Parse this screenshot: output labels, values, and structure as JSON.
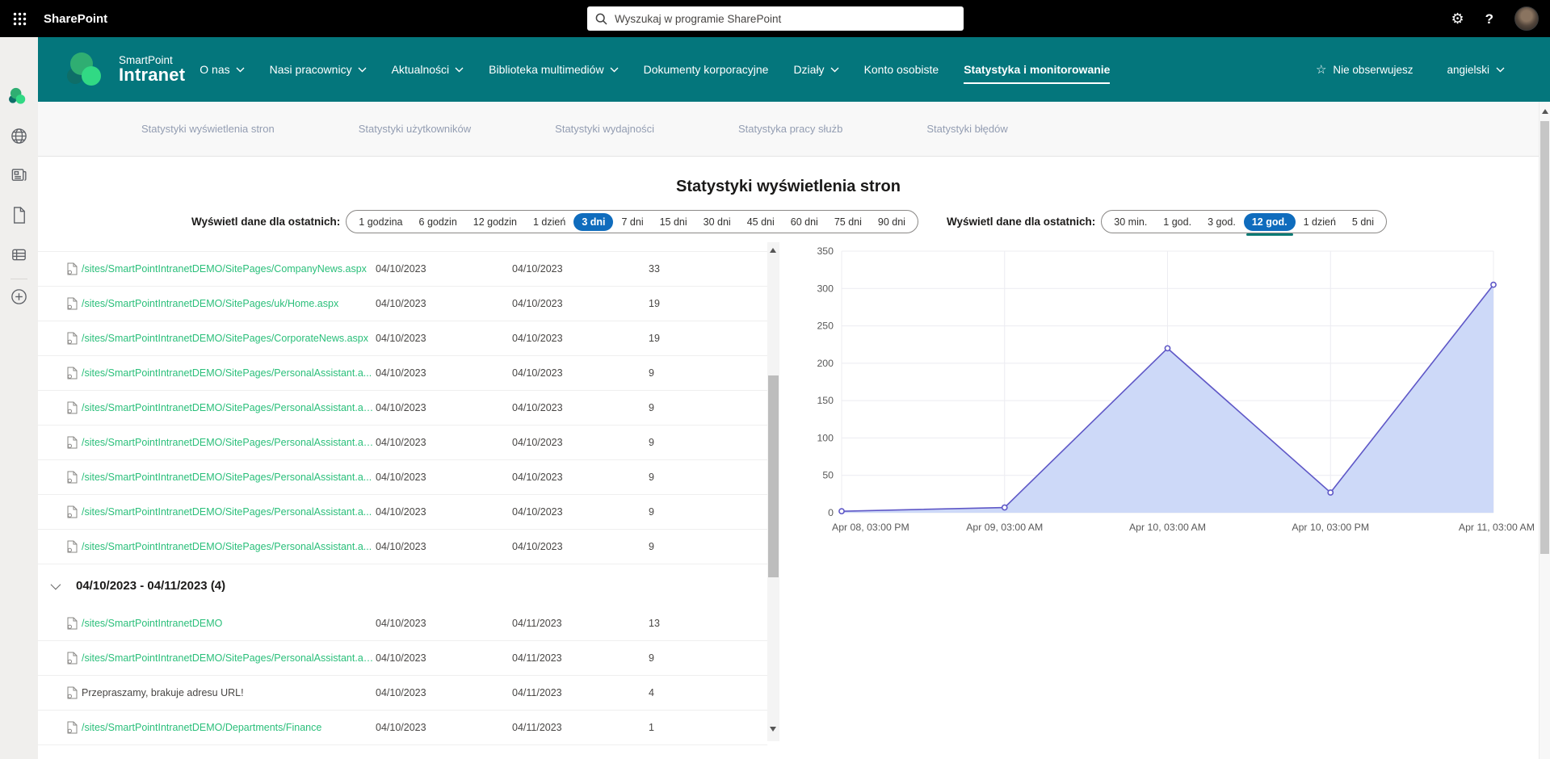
{
  "topbar": {
    "app_name": "SharePoint",
    "search_placeholder": "Wyszukaj w programie SharePoint"
  },
  "icons": {
    "gear": "⚙",
    "help": "?",
    "star": "☆"
  },
  "nav": {
    "logo_line1": "SmartPoint",
    "logo_line2": "Intranet",
    "items": [
      {
        "label": "O nas",
        "dropdown": true,
        "active": false
      },
      {
        "label": "Nasi pracownicy",
        "dropdown": true,
        "active": false
      },
      {
        "label": "Aktualności",
        "dropdown": true,
        "active": false
      },
      {
        "label": "Biblioteka multimediów",
        "dropdown": true,
        "active": false
      },
      {
        "label": "Dokumenty korporacyjne",
        "dropdown": false,
        "active": false
      },
      {
        "label": "Działy",
        "dropdown": true,
        "active": false
      },
      {
        "label": "Konto osobiste",
        "dropdown": false,
        "active": false
      },
      {
        "label": "Statystyka i monitorowanie",
        "dropdown": false,
        "active": true
      }
    ],
    "follow_label": "Nie obserwujesz",
    "language": "angielski"
  },
  "tabs": [
    "Statystyki wyświetlenia stron",
    "Statystyki użytkowników",
    "Statystyki wydajności",
    "Statystyka pracy służb",
    "Statystyki błędów"
  ],
  "page": {
    "title": "Statystyki wyświetlenia stron"
  },
  "filters": {
    "left": {
      "label": "Wyświetl dane dla ostatnich:",
      "options": [
        "1 godzina",
        "6 godzin",
        "12 godzin",
        "1 dzień",
        "3 dni",
        "7 dni",
        "15 dni",
        "30 dni",
        "45 dni",
        "60 dni",
        "75 dni",
        "90 dni"
      ],
      "selected": "3 dni"
    },
    "right": {
      "label": "Wyświetl dane dla ostatnich:",
      "options": [
        "30 min.",
        "1 god.",
        "3 god.",
        "12 god.",
        "1 dzień",
        "5 dni"
      ],
      "selected": "12 god."
    }
  },
  "table": {
    "rows": [
      {
        "text": "/sites/SmartPointIntranetDEMO/SitePages/CompanyNews.aspx",
        "link": true,
        "date1": "04/10/2023",
        "date2": "04/10/2023",
        "count": "33"
      },
      {
        "text": "/sites/SmartPointIntranetDEMO/SitePages/uk/Home.aspx",
        "link": true,
        "date1": "04/10/2023",
        "date2": "04/10/2023",
        "count": "19"
      },
      {
        "text": "/sites/SmartPointIntranetDEMO/SitePages/CorporateNews.aspx",
        "link": true,
        "date1": "04/10/2023",
        "date2": "04/10/2023",
        "count": "19"
      },
      {
        "text": "/sites/SmartPointIntranetDEMO/SitePages/PersonalAssistant.a...",
        "link": true,
        "date1": "04/10/2023",
        "date2": "04/10/2023",
        "count": "9"
      },
      {
        "text": "/sites/SmartPointIntranetDEMO/SitePages/PersonalAssistant.as...",
        "link": true,
        "date1": "04/10/2023",
        "date2": "04/10/2023",
        "count": "9"
      },
      {
        "text": "/sites/SmartPointIntranetDEMO/SitePages/PersonalAssistant.as...",
        "link": true,
        "date1": "04/10/2023",
        "date2": "04/10/2023",
        "count": "9"
      },
      {
        "text": "/sites/SmartPointIntranetDEMO/SitePages/PersonalAssistant.a...",
        "link": true,
        "date1": "04/10/2023",
        "date2": "04/10/2023",
        "count": "9"
      },
      {
        "text": "/sites/SmartPointIntranetDEMO/SitePages/PersonalAssistant.a...",
        "link": true,
        "date1": "04/10/2023",
        "date2": "04/10/2023",
        "count": "9"
      },
      {
        "text": "/sites/SmartPointIntranetDEMO/SitePages/PersonalAssistant.a...",
        "link": true,
        "date1": "04/10/2023",
        "date2": "04/10/2023",
        "count": "9"
      }
    ],
    "group": {
      "label": "04/10/2023 - 04/11/2023 (4)",
      "rows": [
        {
          "text": "/sites/SmartPointIntranetDEMO",
          "link": true,
          "date1": "04/10/2023",
          "date2": "04/11/2023",
          "count": "13"
        },
        {
          "text": "/sites/SmartPointIntranetDEMO/SitePages/PersonalAssistant.as...",
          "link": true,
          "date1": "04/10/2023",
          "date2": "04/11/2023",
          "count": "9"
        },
        {
          "text": "Przepraszamy, brakuje adresu URL!",
          "link": false,
          "date1": "04/10/2023",
          "date2": "04/11/2023",
          "count": "4"
        },
        {
          "text": "/sites/SmartPointIntranetDEMO/Departments/Finance",
          "link": true,
          "date1": "04/10/2023",
          "date2": "04/11/2023",
          "count": "1"
        }
      ]
    }
  },
  "chart_data": {
    "type": "area",
    "x": [
      "Apr 08, 03:00 PM",
      "Apr 09, 03:00 AM",
      "Apr 10, 03:00 AM",
      "Apr 10, 03:00 PM",
      "Apr 11, 03:00 AM"
    ],
    "values": [
      2,
      7,
      220,
      27,
      305
    ],
    "title": "",
    "xlabel": "",
    "ylabel": "",
    "ylim": [
      0,
      350
    ],
    "ytick_step": 50,
    "grid": true,
    "legend": "none",
    "line_color": "#5f58c7",
    "fill_color": "#cdd9f8",
    "grid_color": "#ececf1"
  },
  "colors": {
    "header_teal": "#04767c",
    "selected_blue": "#0f6cbd",
    "link_green": "#2abf7a",
    "selected_teal_underline": "#0a7a74"
  }
}
